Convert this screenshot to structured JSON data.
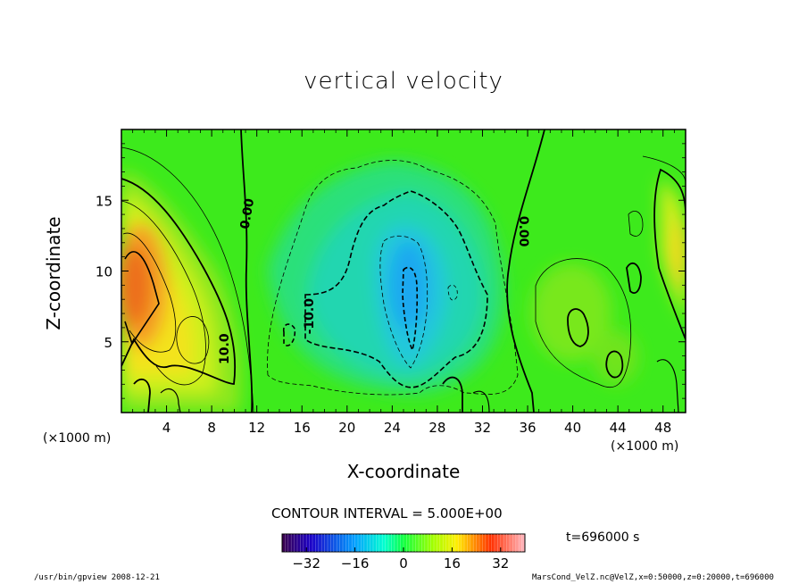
{
  "chart_data": {
    "type": "heatmap",
    "title": "vertical velocity",
    "xlabel": "X-coordinate",
    "ylabel": "Z-coordinate",
    "x_unit_label": "(×1000 m)",
    "x_ticks": [
      4,
      8,
      12,
      16,
      20,
      24,
      28,
      32,
      36,
      40,
      44,
      48
    ],
    "y_ticks": [
      5,
      10,
      15
    ],
    "xlim": [
      0,
      50
    ],
    "ylim": [
      0,
      20
    ],
    "contour_interval_text": "CONTOUR INTERVAL = 5.000E+00",
    "contour_labels": [
      {
        "text": "0.00",
        "x": 11.5,
        "y": 14.0,
        "angle": -80
      },
      {
        "text": "0.00",
        "x": 35.3,
        "y": 12.8,
        "angle": 90
      },
      {
        "text": "10.0",
        "x": 9.5,
        "y": 4.5,
        "angle": -90
      },
      {
        "text": "-10.0",
        "x": 17.0,
        "y": 6.8,
        "angle": -90
      }
    ],
    "colorbar": {
      "range": [
        -40,
        40
      ],
      "ticks": [
        -32,
        -16,
        0,
        16,
        32
      ],
      "colors": [
        "#3a004a",
        "#0000ff",
        "#00ffff",
        "#00ff40",
        "#ffff00",
        "#ff0000",
        "#ffb0b0"
      ]
    },
    "field_summary": [
      {
        "feature": "updraft max",
        "x": 1.5,
        "z": 9,
        "value": 30
      },
      {
        "feature": "downdraft min",
        "x": 25.5,
        "z": 9,
        "value": -20
      },
      {
        "feature": "updraft",
        "x": 50,
        "z": 13,
        "value": 15
      },
      {
        "feature": "weak updraft",
        "x": 40,
        "z": 7,
        "value": 8
      }
    ],
    "time_label": "t=696000 s"
  },
  "footer": {
    "left": "/usr/bin/gpview   2008-12-21",
    "right": "MarsCond_VelZ.nc@VelZ,x=0:50000,z=0:20000,t=696000"
  },
  "colors": {
    "frame": "#000000",
    "background": "#ffffff"
  }
}
